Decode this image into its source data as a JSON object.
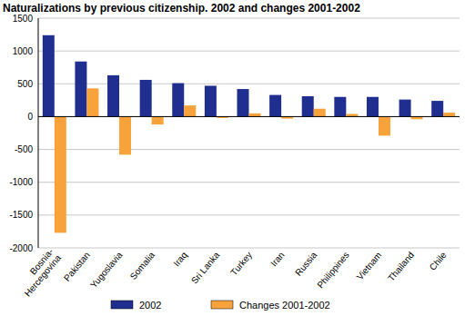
{
  "chart_data": {
    "type": "bar",
    "title": "Naturalizations by previous citizenship. 2002 and changes 2001-2002",
    "categories": [
      "Bosnia-Hercegovina",
      "Pakistan",
      "Yugoslavia",
      "Somalia",
      "Iraq",
      "Sri Lanka",
      "Turkey",
      "Iran",
      "Russia",
      "Philippines",
      "Vietnam",
      "Thailand",
      "Chile"
    ],
    "series": [
      {
        "name": "2002",
        "color": "#1f2e8f",
        "values": [
          1240,
          840,
          630,
          560,
          510,
          470,
          420,
          330,
          310,
          300,
          300,
          260,
          240
        ]
      },
      {
        "name": "Changes 2001-2002",
        "color": "#f7a23b",
        "values": [
          -1770,
          430,
          -580,
          -120,
          170,
          -20,
          50,
          -30,
          120,
          40,
          -290,
          -40,
          60
        ]
      }
    ],
    "ylim": [
      -2000,
      1500
    ],
    "yticks": [
      -2000,
      -1500,
      -1000,
      -500,
      0,
      500,
      1000,
      1500
    ],
    "grid": true,
    "legend": "bottom"
  }
}
